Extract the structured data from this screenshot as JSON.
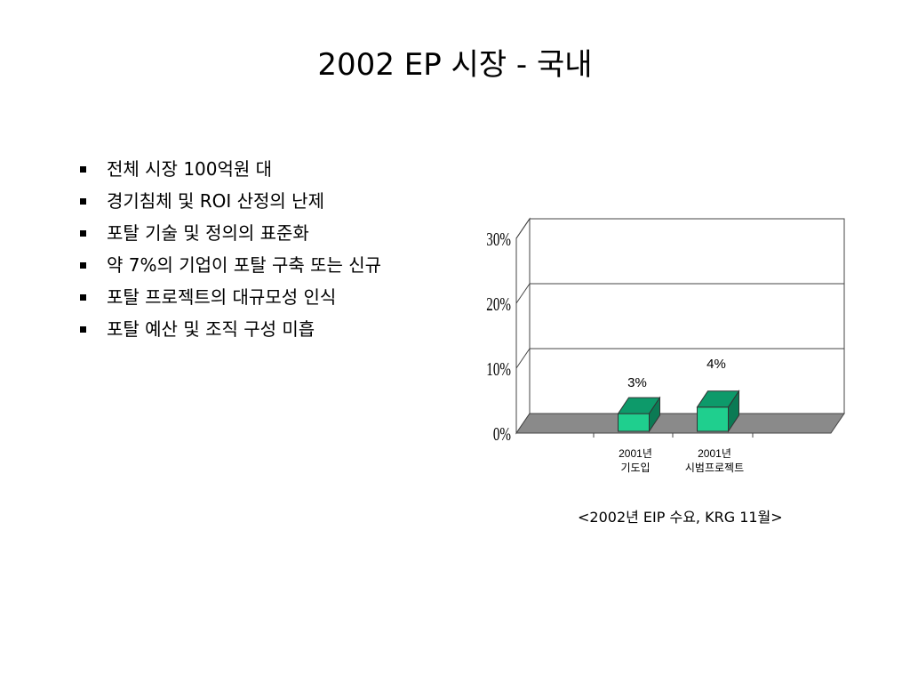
{
  "slide": {
    "title": "2002 EP 시장 - 국내",
    "bullets": [
      "전체 시장 100억원 대",
      "경기침체 및 ROI 산정의 난제",
      "포탈 기술 및 정의의 표준화",
      "약 7%의 기업이 포탈 구축 또는 신규",
      "포탈 프로젝트의 대규모성 인식",
      "포탈 예산 및 조직 구성 미흡"
    ],
    "source_caption": "<2002년 EIP 수요, KRG 11월>"
  },
  "colors": {
    "bar_front": "#1fcf8e",
    "bar_top": "#0d9a6a",
    "bar_side": "#0b7a54",
    "floor": "#8a8a8a"
  },
  "chart_data": {
    "type": "bar",
    "style": "3d-column",
    "categories": [
      "2001년\n기도입",
      "2001년\n시범프로젝트"
    ],
    "values": [
      3,
      4
    ],
    "value_labels": [
      "3%",
      "4%"
    ],
    "ylim": [
      0,
      30
    ],
    "yticks": [
      0,
      10,
      20,
      30
    ],
    "ytick_labels": [
      "0%",
      "10%",
      "20%",
      "30%"
    ],
    "grid": true,
    "legend": "none"
  }
}
